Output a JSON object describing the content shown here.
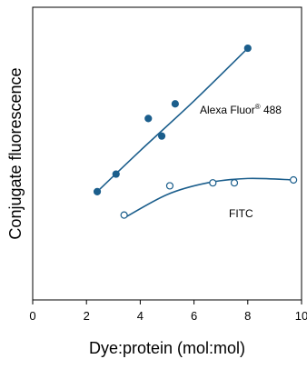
{
  "chart_data": {
    "type": "scatter",
    "xlabel": "Dye:protein (mol:mol)",
    "ylabel": "Conjugate fluorescence",
    "xlim": [
      0,
      10
    ],
    "ylim": [
      0,
      100
    ],
    "x_ticks": [
      "0",
      "2",
      "4",
      "6",
      "8",
      "10"
    ],
    "grid": false,
    "series": [
      {
        "name": "Alexa Fluor",
        "name_superscript": "®",
        "name_suffix": " 488",
        "marker": "filled-circle",
        "color": "#1b5e8c",
        "points": [
          [
            2.4,
            37
          ],
          [
            3.1,
            43
          ],
          [
            4.3,
            62
          ],
          [
            4.8,
            56
          ],
          [
            5.3,
            67
          ],
          [
            8.0,
            86
          ]
        ],
        "fit_curve": [
          [
            2.4,
            37
          ],
          [
            4.0,
            51
          ],
          [
            6.0,
            68
          ],
          [
            8.0,
            86
          ]
        ]
      },
      {
        "name": "FITC",
        "marker": "open-circle",
        "color": "#1b5e8c",
        "points": [
          [
            3.4,
            29
          ],
          [
            5.1,
            39
          ],
          [
            6.7,
            40
          ],
          [
            7.5,
            40
          ],
          [
            9.7,
            41
          ]
        ],
        "fit_curve": [
          [
            3.4,
            28
          ],
          [
            5.0,
            36
          ],
          [
            6.5,
            40
          ],
          [
            8.0,
            41.5
          ],
          [
            9.7,
            41
          ]
        ]
      }
    ]
  }
}
